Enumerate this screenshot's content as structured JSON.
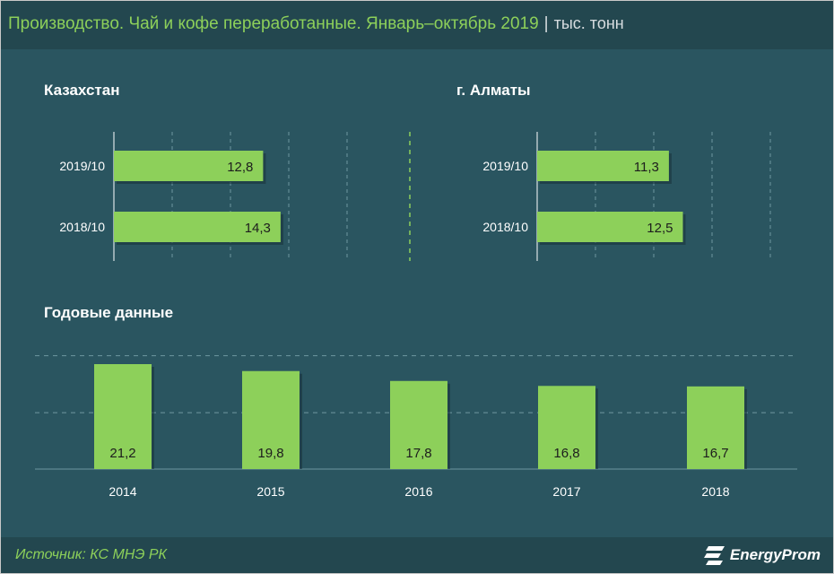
{
  "header": {
    "title": "Производство. Чай и кофе переработанные. Январь–октябрь 2019",
    "separator": "|",
    "unit": "тыс. тонн"
  },
  "footer": {
    "source": "Источник: КС МНЭ РК",
    "logo_text": "EnergyProm",
    "logo_icon": "energyprom-logo-icon"
  },
  "colors": {
    "background": "#2a5560",
    "header_bg": "#23474f",
    "bar": "#8dd05a",
    "accent_text": "#8dd05a",
    "grid": "#6f98a0"
  },
  "chart_data": [
    {
      "type": "bar",
      "orientation": "horizontal",
      "title": "Казахстан",
      "categories": [
        "2019/10",
        "2018/10"
      ],
      "values": [
        12.8,
        14.3
      ],
      "value_labels": [
        "12,8",
        "14,3"
      ],
      "xlim": [
        0,
        20
      ],
      "grid": true
    },
    {
      "type": "bar",
      "orientation": "horizontal",
      "title": "г. Алматы",
      "categories": [
        "2019/10",
        "2018/10"
      ],
      "values": [
        11.3,
        12.5
      ],
      "value_labels": [
        "11,3",
        "12,5"
      ],
      "xlim": [
        0,
        20
      ],
      "grid": true
    },
    {
      "type": "bar",
      "orientation": "vertical",
      "title": "Годовые данные",
      "categories": [
        "2014",
        "2015",
        "2016",
        "2017",
        "2018"
      ],
      "values": [
        21.2,
        19.8,
        17.8,
        16.8,
        16.7
      ],
      "value_labels": [
        "21,2",
        "19,8",
        "17,8",
        "16,8",
        "16,7"
      ],
      "ylim": [
        0,
        23
      ],
      "grid": true
    }
  ]
}
